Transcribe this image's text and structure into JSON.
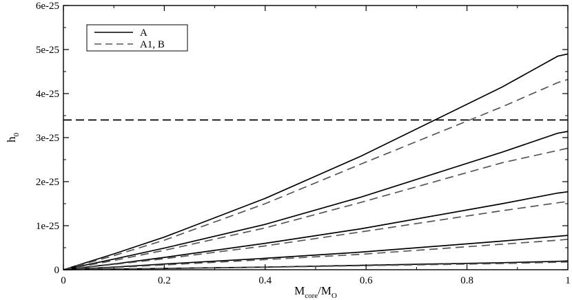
{
  "chart_data": {
    "type": "line",
    "xlabel": {
      "main": "M",
      "sub1": "core",
      "sep": "/M",
      "sub2": "O"
    },
    "ylabel": {
      "main": "h",
      "sub": "0"
    },
    "xlim": [
      0,
      1
    ],
    "ylim": [
      0,
      6e-25
    ],
    "x_ticks": [
      0,
      0.2,
      0.4,
      0.6,
      0.8,
      1
    ],
    "x_tick_labels": [
      "0",
      "0.2",
      "0.4",
      "0.6",
      "0.8",
      "1"
    ],
    "y_ticks": [
      0,
      1e-25,
      2e-25,
      3e-25,
      4e-25,
      5e-25,
      6e-25
    ],
    "y_tick_labels": [
      "0",
      "1e-25",
      "2e-25",
      "3e-25",
      "4e-25",
      "5e-25",
      "6e-25"
    ],
    "legend": {
      "placement": "top-left",
      "entries": [
        {
          "label": "A",
          "style": "solid"
        },
        {
          "label": "A1, B",
          "style": "dashed"
        }
      ]
    },
    "series": [
      {
        "legend": "A",
        "style": "solid",
        "color": "#000000",
        "points": [
          [
            0,
            0
          ],
          [
            0.1,
            3.6e-26
          ],
          [
            0.2,
            7.4e-26
          ],
          [
            0.4,
            1.62e-25
          ],
          [
            0.59,
            2.58e-25
          ],
          [
            0.87,
            4.15e-25
          ],
          [
            0.98,
            4.85e-25
          ],
          [
            1,
            4.9e-25
          ]
        ]
      },
      {
        "legend": "A1, B",
        "style": "dashed",
        "color": "#555555",
        "points": [
          [
            0,
            0
          ],
          [
            0.1,
            3.2e-26
          ],
          [
            0.2,
            6.7e-26
          ],
          [
            0.4,
            1.5e-25
          ],
          [
            0.59,
            2.4e-25
          ],
          [
            0.87,
            3.7e-25
          ],
          [
            0.98,
            4.25e-25
          ],
          [
            1,
            4.32e-25
          ]
        ]
      },
      {
        "legend": "A",
        "style": "solid",
        "color": "#000000",
        "points": [
          [
            0,
            0
          ],
          [
            0.1,
            2.4e-26
          ],
          [
            0.2,
            4.9e-26
          ],
          [
            0.4,
            1.03e-25
          ],
          [
            0.59,
            1.65e-25
          ],
          [
            0.87,
            2.67e-25
          ],
          [
            0.98,
            3.1e-25
          ],
          [
            1,
            3.14e-25
          ]
        ]
      },
      {
        "legend": "A1, B",
        "style": "dashed",
        "color": "#555555",
        "points": [
          [
            0,
            0
          ],
          [
            0.1,
            2.1e-26
          ],
          [
            0.2,
            4.4e-26
          ],
          [
            0.4,
            9.5e-26
          ],
          [
            0.59,
            1.53e-25
          ],
          [
            0.87,
            2.43e-25
          ],
          [
            0.98,
            2.71e-25
          ],
          [
            1,
            2.76e-25
          ]
        ]
      },
      {
        "legend": "A",
        "style": "solid",
        "color": "#000000",
        "points": [
          [
            0,
            0
          ],
          [
            0.1,
            1.3e-26
          ],
          [
            0.2,
            2.8e-26
          ],
          [
            0.4,
            6e-26
          ],
          [
            0.59,
            9.3e-26
          ],
          [
            0.87,
            1.5e-25
          ],
          [
            0.98,
            1.74e-25
          ],
          [
            1,
            1.77e-25
          ]
        ]
      },
      {
        "legend": "A1, B",
        "style": "dashed",
        "color": "#555555",
        "points": [
          [
            0,
            0
          ],
          [
            0.1,
            1.2e-26
          ],
          [
            0.2,
            2.5e-26
          ],
          [
            0.4,
            5.4e-26
          ],
          [
            0.59,
            8.6e-26
          ],
          [
            0.87,
            1.34e-25
          ],
          [
            0.98,
            1.52e-25
          ],
          [
            1,
            1.55e-25
          ]
        ]
      },
      {
        "legend": "A",
        "style": "solid",
        "color": "#000000",
        "points": [
          [
            0,
            0
          ],
          [
            0.1,
            6e-27
          ],
          [
            0.2,
            1.3e-26
          ],
          [
            0.4,
            2.6e-26
          ],
          [
            0.59,
            4e-26
          ],
          [
            0.87,
            6.5e-26
          ],
          [
            0.98,
            7.6e-26
          ],
          [
            1,
            7.8e-26
          ]
        ]
      },
      {
        "legend": "A1, B",
        "style": "dashed",
        "color": "#555555",
        "points": [
          [
            0,
            0
          ],
          [
            0.1,
            5e-27
          ],
          [
            0.2,
            1.1e-26
          ],
          [
            0.4,
            2.3e-26
          ],
          [
            0.59,
            3.5e-26
          ],
          [
            0.87,
            5.8e-26
          ],
          [
            0.98,
            6.7e-26
          ],
          [
            1,
            6.9e-26
          ]
        ]
      },
      {
        "legend": "A",
        "style": "solid",
        "color": "#000000",
        "points": [
          [
            0,
            0
          ],
          [
            0.1,
            1.5e-27
          ],
          [
            0.2,
            3e-27
          ],
          [
            0.4,
            6e-27
          ],
          [
            0.59,
            1e-26
          ],
          [
            0.87,
            1.6e-26
          ],
          [
            0.98,
            1.9e-26
          ],
          [
            1,
            2e-26
          ]
        ]
      },
      {
        "legend": "A1, B",
        "style": "dashed",
        "color": "#555555",
        "points": [
          [
            0,
            0
          ],
          [
            0.1,
            1.3e-27
          ],
          [
            0.2,
            2.7e-27
          ],
          [
            0.4,
            5.5e-27
          ],
          [
            0.59,
            9e-27
          ],
          [
            0.87,
            1.4e-26
          ],
          [
            0.98,
            1.7e-26
          ],
          [
            1,
            1.75e-26
          ]
        ]
      }
    ],
    "reference_lines": [
      {
        "orientation": "horizontal",
        "y": 3.4e-25,
        "style": "dashed",
        "color": "#000000"
      }
    ],
    "grid": false
  }
}
